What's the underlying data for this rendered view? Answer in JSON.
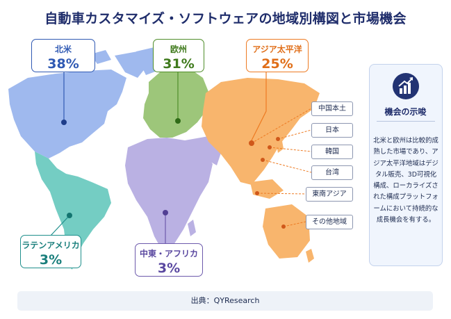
{
  "title": "自動車カスタマイズ・ソフトウェアの地域別構図と市場機会",
  "regions": [
    {
      "name": "北米",
      "share": "38%",
      "color": "#2f59b3",
      "fill": "#9fb9ee"
    },
    {
      "name": "欧州",
      "share": "31%",
      "color": "#4f8d2a",
      "fill": "#9dc67a"
    },
    {
      "name": "アジア太平洋",
      "share": "25%",
      "color": "#ed7a22",
      "fill": "#f8b56d"
    },
    {
      "name": "ラテンアメリカ",
      "share": "3%",
      "color": "#1f8f8c",
      "fill": "#74cdc3"
    },
    {
      "name": "中東・アフリカ",
      "share": "3%",
      "color": "#6d5aac",
      "fill": "#bab1e3"
    }
  ],
  "countries": [
    "中国本土",
    "日本",
    "韓国",
    "台湾",
    "東南アジア",
    "その他地域"
  ],
  "insight": {
    "heading": "機会の示唆",
    "icon": "chart-up-icon",
    "body": "北米と欧州は比較的成熟した市場であり、アジア太平洋地域はデジタル販売、3D可視化構成、ローカライズされた構成プラットフォームにおいて持続的な成長機会を有する。"
  },
  "source": "出典：QYResearch"
}
